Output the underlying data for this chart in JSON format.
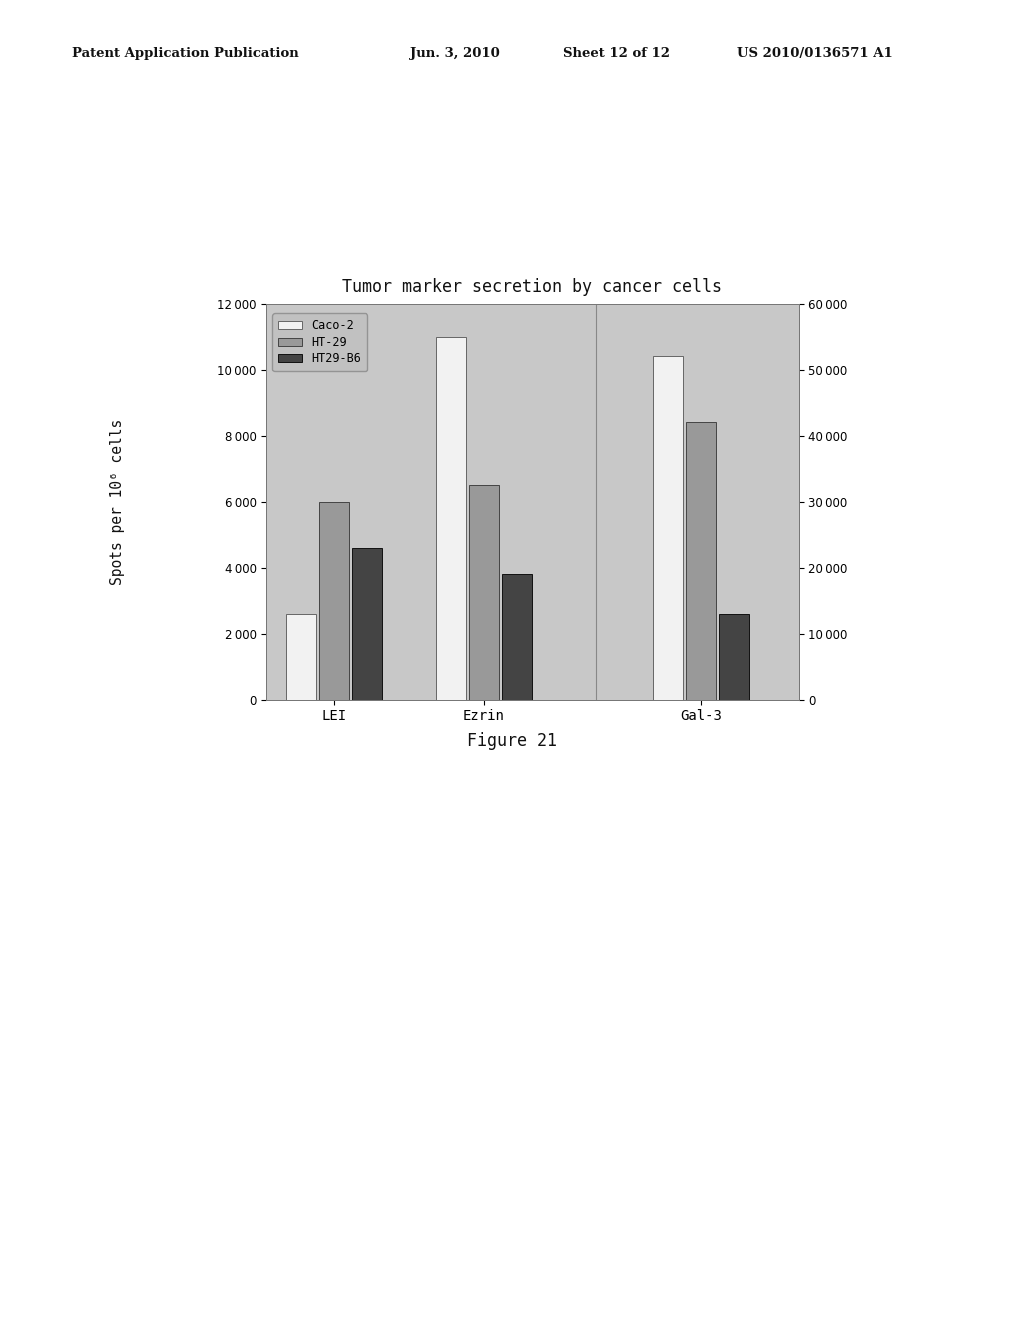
{
  "title": "Tumor marker secretion by cancer cells",
  "ylabel": "Spots per 10⁶ cells",
  "figure_caption": "Figure 21",
  "patent_line1": "Patent Application Publication",
  "patent_line2": "Jun. 3, 2010",
  "patent_line3": "Sheet 12 of 12",
  "patent_line4": "US 2010/0136571 A1",
  "categories": [
    "LEI",
    "Ezrin",
    "Gal-3"
  ],
  "series": [
    "Caco-2",
    "HT-29",
    "HT29-B6"
  ],
  "colors": [
    "#f2f2f2",
    "#999999",
    "#444444"
  ],
  "edgecolors": [
    "#666666",
    "#444444",
    "#111111"
  ],
  "left_axis_data": {
    "LEI": [
      2600,
      6000,
      4600
    ],
    "Ezrin": [
      11000,
      6500,
      3800
    ]
  },
  "right_axis_data": {
    "Gal-3": [
      52000,
      42000,
      13000
    ]
  },
  "left_ylim": [
    0,
    12000
  ],
  "right_ylim": [
    0,
    60000
  ],
  "left_yticks": [
    0,
    2000,
    4000,
    6000,
    8000,
    10000,
    12000
  ],
  "right_yticks": [
    0,
    10000,
    20000,
    30000,
    40000,
    50000,
    60000
  ],
  "plot_bg_color": "#c8c8c8",
  "bar_width": 0.22,
  "font_family": "monospace"
}
